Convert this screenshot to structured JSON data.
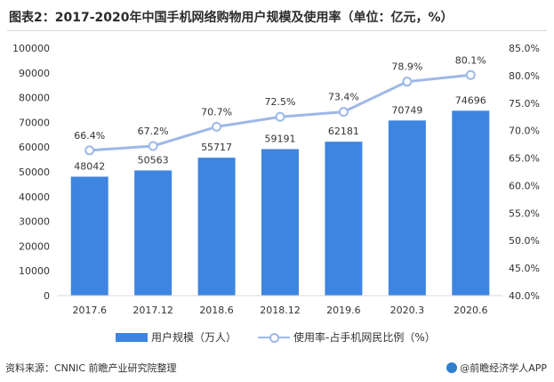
{
  "title": "图表2：2017-2020年中国手机网络购物用户规模及使用率（单位：亿元，%）",
  "source": "资料来源：CNNIC 前瞻产业研究院整理",
  "credit": "@前瞻经济学人APP",
  "legend": {
    "bar_label": "用户规模（万人）",
    "line_label": "使用率-占手机网民比例（%）"
  },
  "colors": {
    "bar": "#3d85e0",
    "line": "#9db8e8",
    "grid": "#d9d9d9",
    "text": "#333333"
  },
  "chart_data": {
    "type": "bar",
    "categories": [
      "2017.6",
      "2017.12",
      "2018.6",
      "2018.12",
      "2019.6",
      "2020.3",
      "2020.6"
    ],
    "series": [
      {
        "name": "用户规模（万人）",
        "type": "bar",
        "axis": "left",
        "values": [
          48042,
          50563,
          55717,
          59191,
          62181,
          70749,
          74696
        ],
        "labels": [
          "48042",
          "50563",
          "55717",
          "59191",
          "62181",
          "70749",
          "74696"
        ]
      },
      {
        "name": "使用率-占手机网民比例（%）",
        "type": "line",
        "axis": "right",
        "values": [
          66.4,
          67.2,
          70.7,
          72.5,
          73.4,
          78.9,
          80.1
        ],
        "labels": [
          "66.4%",
          "67.2%",
          "70.7%",
          "72.5%",
          "73.4%",
          "78.9%",
          "80.1%"
        ]
      }
    ],
    "ylim_left": [
      0,
      100000
    ],
    "ylim_right": [
      40,
      85
    ],
    "left_ticks": [
      "0",
      "10000",
      "20000",
      "30000",
      "40000",
      "50000",
      "60000",
      "70000",
      "80000",
      "90000",
      "100000"
    ],
    "right_ticks": [
      "40.0%",
      "45.0%",
      "50.0%",
      "55.0%",
      "60.0%",
      "65.0%",
      "70.0%",
      "75.0%",
      "80.0%",
      "85.0%"
    ],
    "grid": false,
    "legend_position": "bottom"
  }
}
